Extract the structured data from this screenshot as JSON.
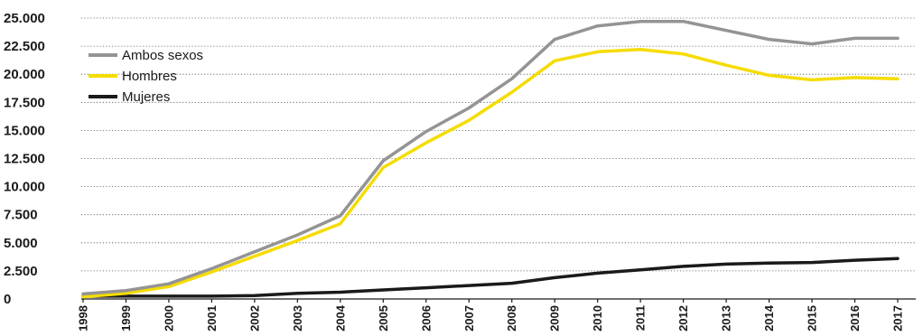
{
  "chart_data": {
    "type": "line",
    "title": "",
    "xlabel": "",
    "ylabel": "",
    "ylim": [
      0,
      25000
    ],
    "grid": true,
    "legend_position": "top-left",
    "categories": [
      "1998",
      "1999",
      "2000",
      "2001",
      "2002",
      "2003",
      "2004",
      "2005",
      "2006",
      "2007",
      "2008",
      "2009",
      "2010",
      "2011",
      "2012",
      "2013",
      "2014",
      "2015",
      "2016",
      "2017"
    ],
    "y_ticks": [
      {
        "value": 0,
        "label": "0"
      },
      {
        "value": 2500,
        "label": "2.500"
      },
      {
        "value": 5000,
        "label": "5.000"
      },
      {
        "value": 7500,
        "label": "7.500"
      },
      {
        "value": 10000,
        "label": "10.000"
      },
      {
        "value": 12500,
        "label": "12.500"
      },
      {
        "value": 15000,
        "label": "15.000"
      },
      {
        "value": 17500,
        "label": "17.500"
      },
      {
        "value": 20000,
        "label": "20.000"
      },
      {
        "value": 22500,
        "label": "22.500"
      },
      {
        "value": 25000,
        "label": "25.000"
      }
    ],
    "series": [
      {
        "name": "Ambos sexos",
        "color": "#949494",
        "values": [
          450,
          750,
          1350,
          2700,
          4200,
          5700,
          7400,
          12300,
          14900,
          17000,
          19600,
          23100,
          24300,
          24700,
          24700,
          23900,
          23100,
          22700,
          23200,
          23200
        ]
      },
      {
        "name": "Hombres",
        "color": "#f5dc00",
        "values": [
          200,
          500,
          1100,
          2400,
          3800,
          5200,
          6700,
          11700,
          13900,
          15900,
          18400,
          21200,
          22000,
          22200,
          21800,
          20800,
          19900,
          19500,
          19700,
          19600
        ]
      },
      {
        "name": "Mujeres",
        "color": "#1a1a1a",
        "values": [
          250,
          250,
          250,
          250,
          300,
          500,
          600,
          800,
          1000,
          1200,
          1400,
          1900,
          2300,
          2600,
          2900,
          3100,
          3200,
          3250,
          3450,
          3600
        ]
      }
    ]
  }
}
